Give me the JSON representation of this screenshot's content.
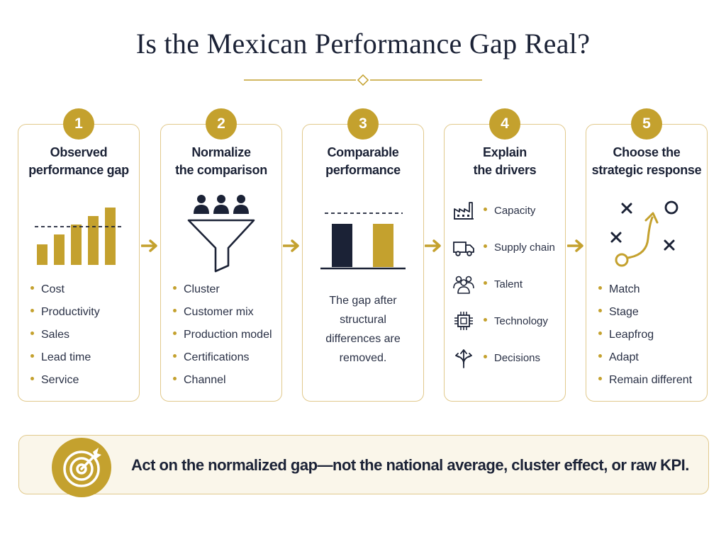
{
  "title": "Is the Mexican Performance Gap Real?",
  "colors": {
    "navy": "#1b2236",
    "gold": "#c4a12e",
    "border": "#e1c98c",
    "banner_bg": "#faf6ea"
  },
  "steps": [
    {
      "number": "1",
      "title_lines": [
        "Observed",
        "performance gap"
      ],
      "icon": "bar-chart-icon",
      "bullets": [
        "Cost",
        "Productivity",
        "Sales",
        "Lead time",
        "Service"
      ]
    },
    {
      "number": "2",
      "title_lines": [
        "Normalize",
        "the comparison"
      ],
      "icon": "funnel-icon",
      "bullets": [
        "Cluster",
        "Customer mix",
        "Production model",
        "Certifications",
        "Channel"
      ]
    },
    {
      "number": "3",
      "title_lines": [
        "Comparable",
        "performance"
      ],
      "icon": "comparison-bars-icon",
      "description_lines": [
        "The gap after",
        "structural",
        "differences are",
        "removed."
      ]
    },
    {
      "number": "4",
      "title_lines": [
        "Explain",
        "the drivers"
      ],
      "drivers": [
        {
          "icon": "factory-icon",
          "label": "Capacity"
        },
        {
          "icon": "truck-icon",
          "label": "Supply chain"
        },
        {
          "icon": "people-icon",
          "label": "Talent"
        },
        {
          "icon": "chip-icon",
          "label": "Technology"
        },
        {
          "icon": "split-arrows-icon",
          "label": "Decisions"
        }
      ]
    },
    {
      "number": "5",
      "title_lines": [
        "Choose the",
        "strategic response"
      ],
      "icon": "strategy-play-icon",
      "bullets": [
        "Match",
        "Stage",
        "Leapfrog",
        "Adapt",
        "Remain different"
      ]
    }
  ],
  "banner": {
    "icon": "target-icon",
    "text": "Act on the normalized gap—not the national average, cluster effect, or raw KPI."
  }
}
